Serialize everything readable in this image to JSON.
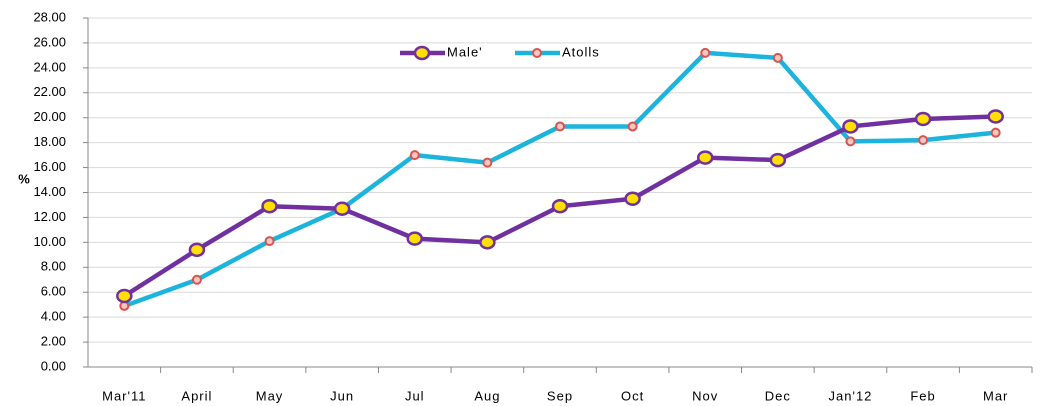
{
  "chart_data": {
    "type": "line",
    "y_label": "%",
    "categories": [
      "Mar'11",
      "April",
      "May",
      "Jun",
      "Jul",
      "Aug",
      "Sep",
      "Oct",
      "Nov",
      "Dec",
      "Jan'12",
      "Feb",
      "Mar"
    ],
    "series": [
      {
        "name": "Male'",
        "color": "#7030a0",
        "marker_color": "#ffe000",
        "values": [
          5.7,
          9.4,
          12.9,
          12.7,
          10.3,
          10.0,
          12.9,
          13.5,
          16.8,
          16.6,
          19.3,
          19.9,
          20.1
        ]
      },
      {
        "name": "Atolls",
        "color": "#1cb4dc",
        "marker_color": "#d9534f",
        "values": [
          4.9,
          7.0,
          10.1,
          12.7,
          17.0,
          16.4,
          19.3,
          19.3,
          25.2,
          24.8,
          18.1,
          18.2,
          18.8
        ]
      }
    ],
    "ylim": [
      0,
      28
    ],
    "yticks": [
      {
        "value": 0,
        "label": "0.00"
      },
      {
        "value": 2,
        "label": "2.00"
      },
      {
        "value": 4,
        "label": "4.00"
      },
      {
        "value": 6,
        "label": "6.00"
      },
      {
        "value": 8,
        "label": "8.00"
      },
      {
        "value": 10,
        "label": "10.00"
      },
      {
        "value": 12,
        "label": "12.00"
      },
      {
        "value": 14,
        "label": "14.00"
      },
      {
        "value": 16,
        "label": "16.00"
      },
      {
        "value": 18,
        "label": "18.00"
      },
      {
        "value": 20,
        "label": "20.00"
      },
      {
        "value": 22,
        "label": "22.00"
      },
      {
        "value": 24,
        "label": "24.00"
      },
      {
        "value": 26,
        "label": "26.00"
      },
      {
        "value": 28,
        "label": "28.00"
      }
    ],
    "grid": true
  }
}
